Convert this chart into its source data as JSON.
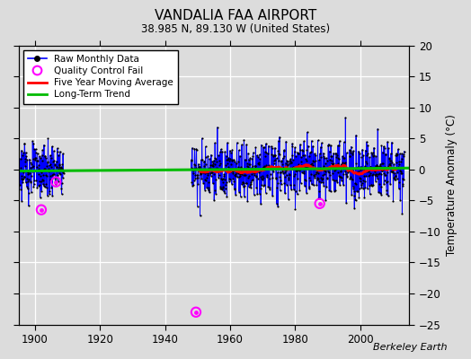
{
  "title": "VANDALIA FAA AIRPORT",
  "subtitle": "38.985 N, 89.130 W (United States)",
  "ylabel": "Temperature Anomaly (°C)",
  "watermark": "Berkeley Earth",
  "xlim": [
    1895,
    2015
  ],
  "ylim": [
    -25,
    20
  ],
  "yticks": [
    -25,
    -20,
    -15,
    -10,
    -5,
    0,
    5,
    10,
    15,
    20
  ],
  "xticks": [
    1900,
    1920,
    1940,
    1960,
    1980,
    2000
  ],
  "bg_color": "#dcdcdc",
  "plot_bg_color": "#dcdcdc",
  "raw_color": "#0000ff",
  "dot_color": "#000000",
  "ma_color": "#ff0000",
  "trend_color": "#00bb00",
  "qc_color": "#ff00ff",
  "legend_items": [
    "Raw Monthly Data",
    "Quality Control Fail",
    "Five Year Moving Average",
    "Long-Term Trend"
  ],
  "segment1_start": 1895.5,
  "segment1_end": 1909.0,
  "segment2_start": 1948.0,
  "segment2_end": 2013.5,
  "qc_points": [
    [
      1902.0,
      -6.5
    ],
    [
      1906.5,
      -2.0
    ],
    [
      1949.5,
      -23.0
    ],
    [
      1987.5,
      -5.5
    ]
  ]
}
